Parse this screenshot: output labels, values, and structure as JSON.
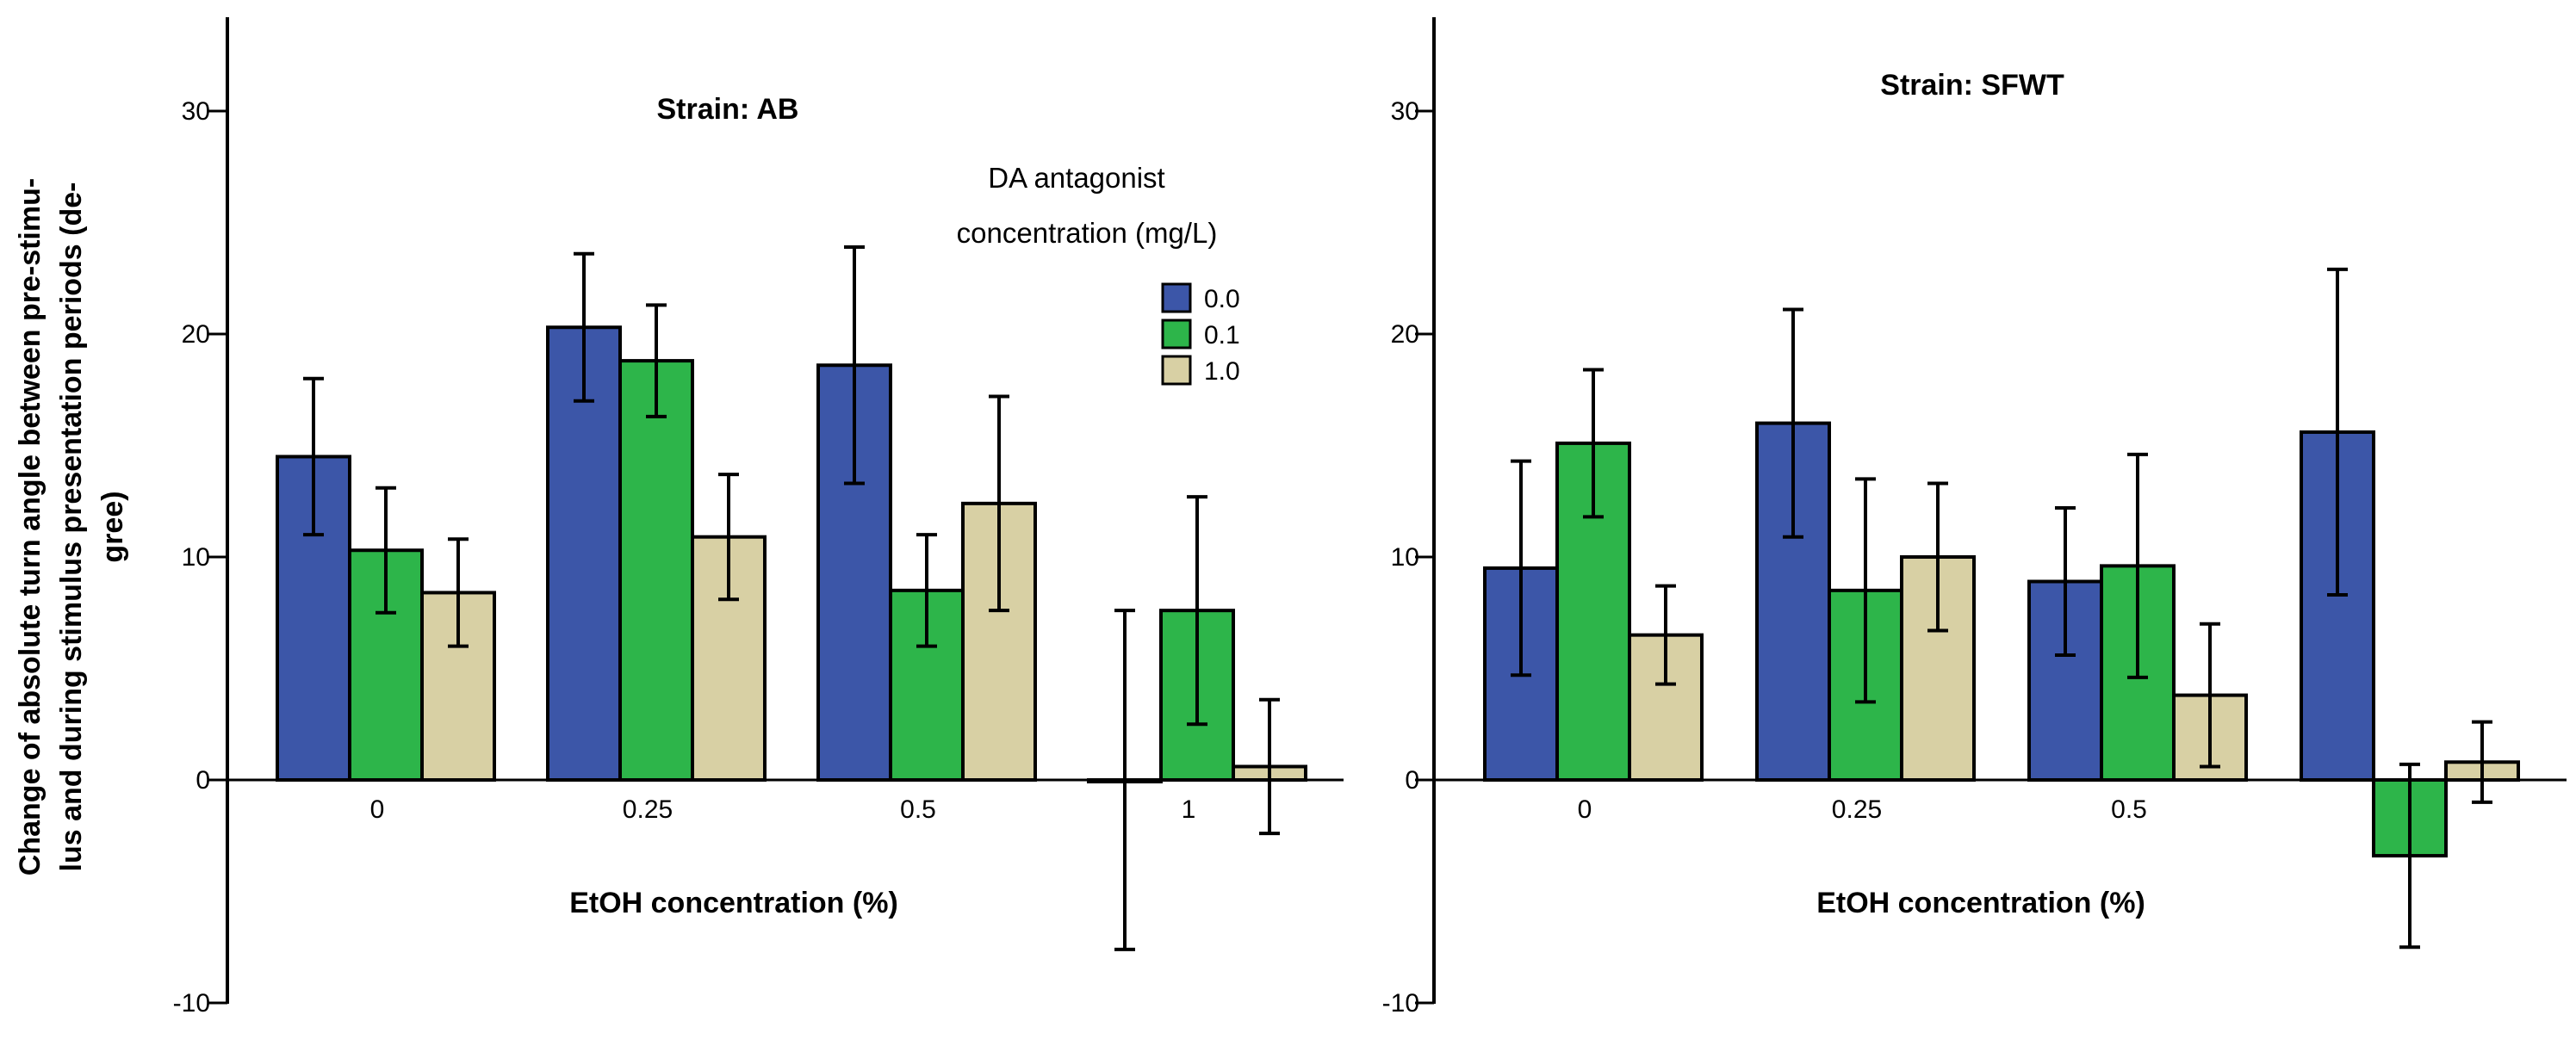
{
  "y_axis_label_lines": [
    "Change of absolute turn angle between pre-stimu-",
    "lus and during stimulus presentation periods (de-",
    "gree)"
  ],
  "legend": {
    "title_lines": [
      "DA antagonist",
      "concentration  (mg/L)"
    ]
  },
  "colors": {
    "0.0": "#3c56a8",
    "0.1": "#2db54a",
    "1.0": "#d8d0a4"
  },
  "chart_data": [
    {
      "type": "bar",
      "title": "Strain: AB",
      "xlabel": "EtOH concentration (%)",
      "ylabel": "Change of absolute turn angle between pre-stimulus and during stimulus presentation periods (degree)",
      "categories": [
        "0",
        "0.25",
        "0.5",
        "1"
      ],
      "ylim": [
        -10,
        35
      ],
      "yticks": [
        -10,
        0,
        10,
        20,
        30
      ],
      "legend_position": "top-right",
      "series": [
        {
          "name": "0.0",
          "values": [
            14.5,
            20.3,
            18.6,
            0.0
          ],
          "errors": [
            3.5,
            3.3,
            5.3,
            7.6
          ]
        },
        {
          "name": "0.1",
          "values": [
            10.3,
            18.8,
            8.5,
            7.6
          ],
          "errors": [
            2.8,
            2.5,
            2.5,
            5.1
          ]
        },
        {
          "name": "1.0",
          "values": [
            8.4,
            10.9,
            12.4,
            0.6
          ],
          "errors": [
            2.4,
            2.8,
            4.8,
            3.0
          ]
        }
      ]
    },
    {
      "type": "bar",
      "title": "Strain: SFWT",
      "xlabel": "EtOH concentration (%)",
      "ylabel": "",
      "categories": [
        "0",
        "0.25",
        "0.5",
        "1"
      ],
      "ylim": [
        -10,
        35
      ],
      "yticks": [
        -10,
        0,
        10,
        20,
        30
      ],
      "series": [
        {
          "name": "0.0",
          "values": [
            9.5,
            16.0,
            8.9,
            15.6
          ],
          "errors": [
            4.8,
            5.1,
            3.3,
            7.3
          ]
        },
        {
          "name": "0.1",
          "values": [
            15.1,
            8.5,
            9.6,
            -3.4
          ],
          "errors": [
            3.3,
            5.0,
            5.0,
            4.1
          ]
        },
        {
          "name": "1.0",
          "values": [
            6.5,
            10.0,
            3.8,
            0.8
          ],
          "errors": [
            2.2,
            3.3,
            3.2,
            1.8
          ]
        }
      ]
    }
  ]
}
